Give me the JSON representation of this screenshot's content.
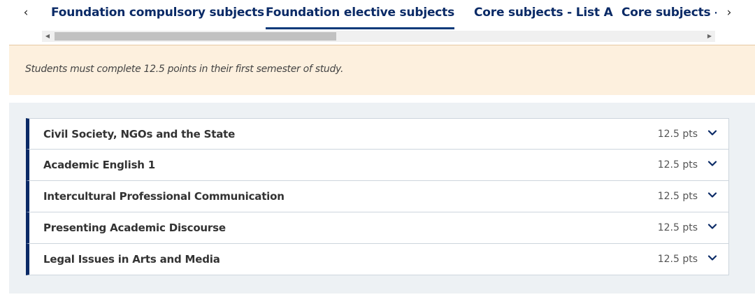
{
  "tabs": {
    "items": [
      {
        "label": "Foundation compulsory subjects",
        "active": false
      },
      {
        "label": "Foundation elective subjects",
        "active": true
      },
      {
        "label": "Core subjects - List A",
        "active": false
      },
      {
        "label": "Core subjects - List B",
        "active": false
      }
    ],
    "prev_arrow": "‹",
    "next_arrow": "›"
  },
  "notice": {
    "text": "Students must complete 12.5 points in their first semester of study."
  },
  "subjects": [
    {
      "title": "Civil Society, NGOs and the State",
      "points": "12.5 pts"
    },
    {
      "title": "Academic English 1",
      "points": "12.5 pts"
    },
    {
      "title": "Intercultural Professional Communication",
      "points": "12.5 pts"
    },
    {
      "title": "Presenting Academic Discourse",
      "points": "12.5 pts"
    },
    {
      "title": "Legal Issues in Arts and Media",
      "points": "12.5 pts"
    }
  ],
  "colors": {
    "accent": "#0a2a66",
    "notice_bg": "#fdf0de",
    "panel_bg": "#edf1f4"
  },
  "icons": {
    "row_toggle": "chevron-down-icon"
  }
}
